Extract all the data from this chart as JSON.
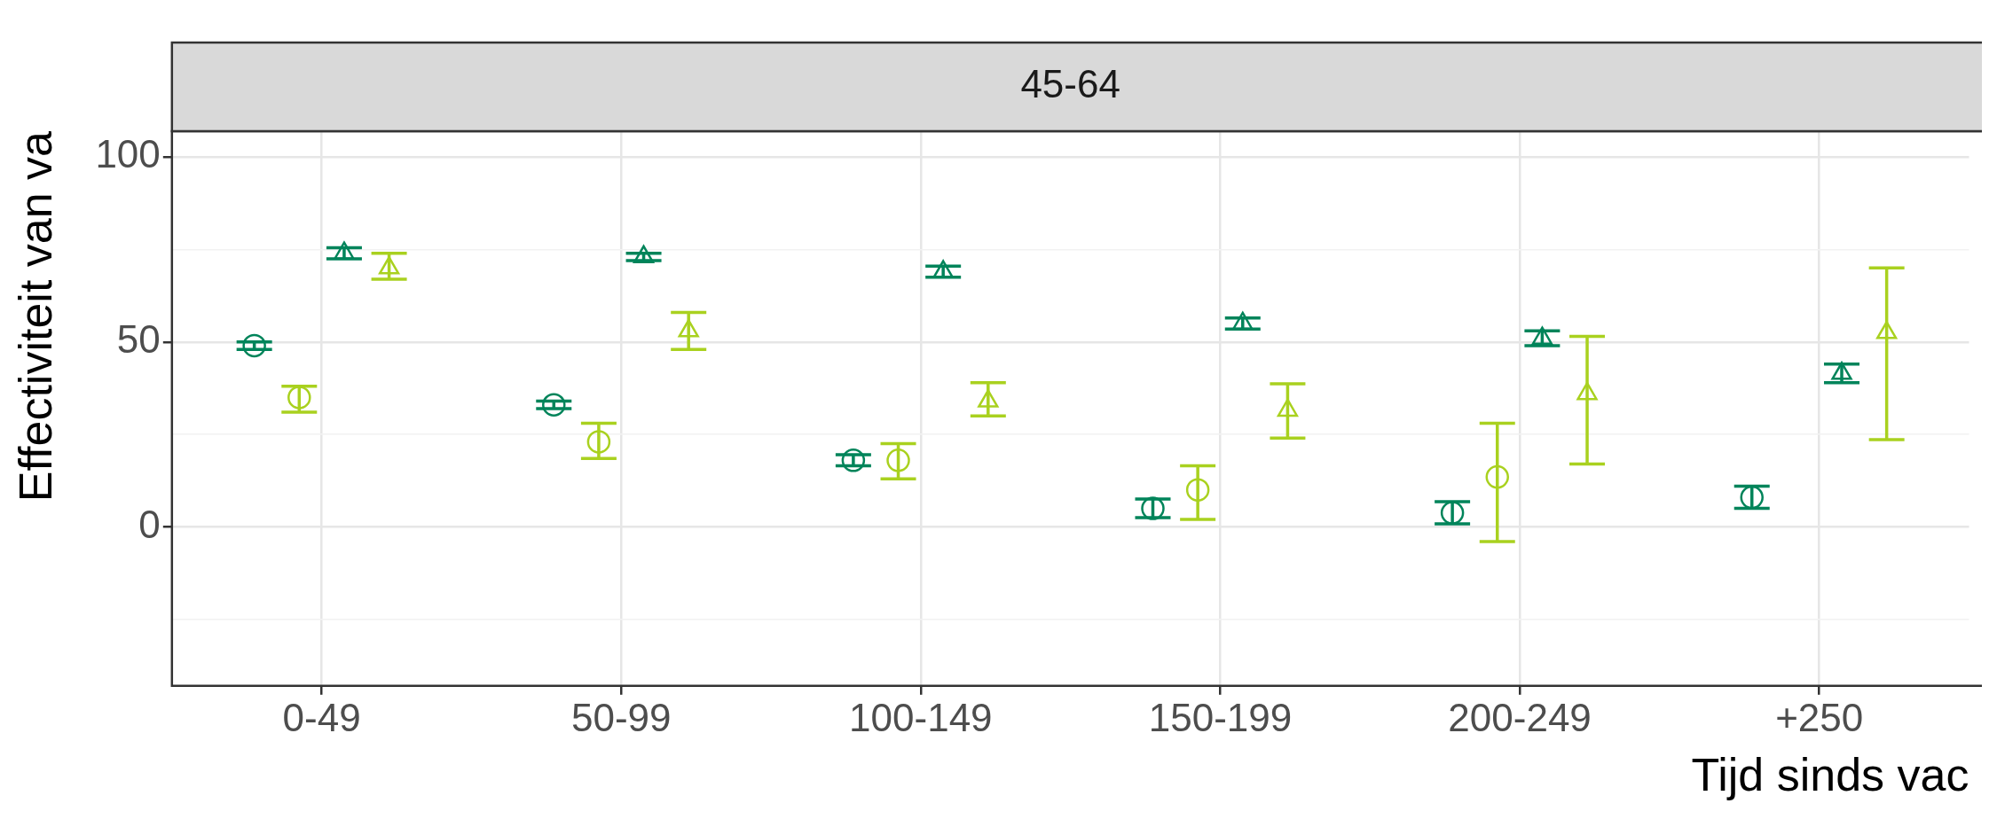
{
  "chart_data": {
    "type": "scatter",
    "title": "45-64",
    "xlabel": "Tijd sinds vac",
    "ylabel": "Effectiviteit van va",
    "categories": [
      "0-49",
      "50-99",
      "100-149",
      "150-199",
      "200-249",
      "+250"
    ],
    "series": [
      {
        "color": "#00845a",
        "marker": "circle",
        "values": [
          49,
          33,
          18,
          5,
          3.8,
          8
        ],
        "errors": [
          1,
          1,
          1.5,
          2.5,
          3,
          3
        ]
      },
      {
        "color": "#a9d11f",
        "marker": "circle",
        "values": [
          35,
          23,
          18,
          10,
          13.5,
          null
        ],
        "errors": [
          [
            31,
            38
          ],
          [
            18.5,
            28
          ],
          [
            13,
            22.5
          ],
          [
            2,
            16.5
          ],
          [
            -4,
            28
          ],
          null
        ]
      },
      {
        "color": "#00845a",
        "marker": "triangle",
        "values": [
          74,
          73,
          69,
          55,
          51,
          41.5
        ],
        "errors": [
          1.5,
          1,
          1.5,
          1.5,
          2,
          [
            39,
            44
          ]
        ]
      },
      {
        "color": "#a9d11f",
        "marker": "triangle",
        "values": [
          70,
          53,
          34,
          31.5,
          36,
          52.5
        ],
        "errors": [
          [
            67,
            74
          ],
          [
            48,
            58
          ],
          [
            30,
            39
          ],
          [
            24,
            38.7
          ],
          [
            17,
            51.5
          ],
          [
            23.6,
            70
          ]
        ]
      }
    ],
    "ylim": [
      -43,
      107
    ],
    "yticks": [
      {
        "value": -25,
        "label": null
      },
      0,
      {
        "value": 25,
        "label": null
      },
      50,
      {
        "value": 75,
        "label": null
      },
      100
    ],
    "grid": true
  }
}
